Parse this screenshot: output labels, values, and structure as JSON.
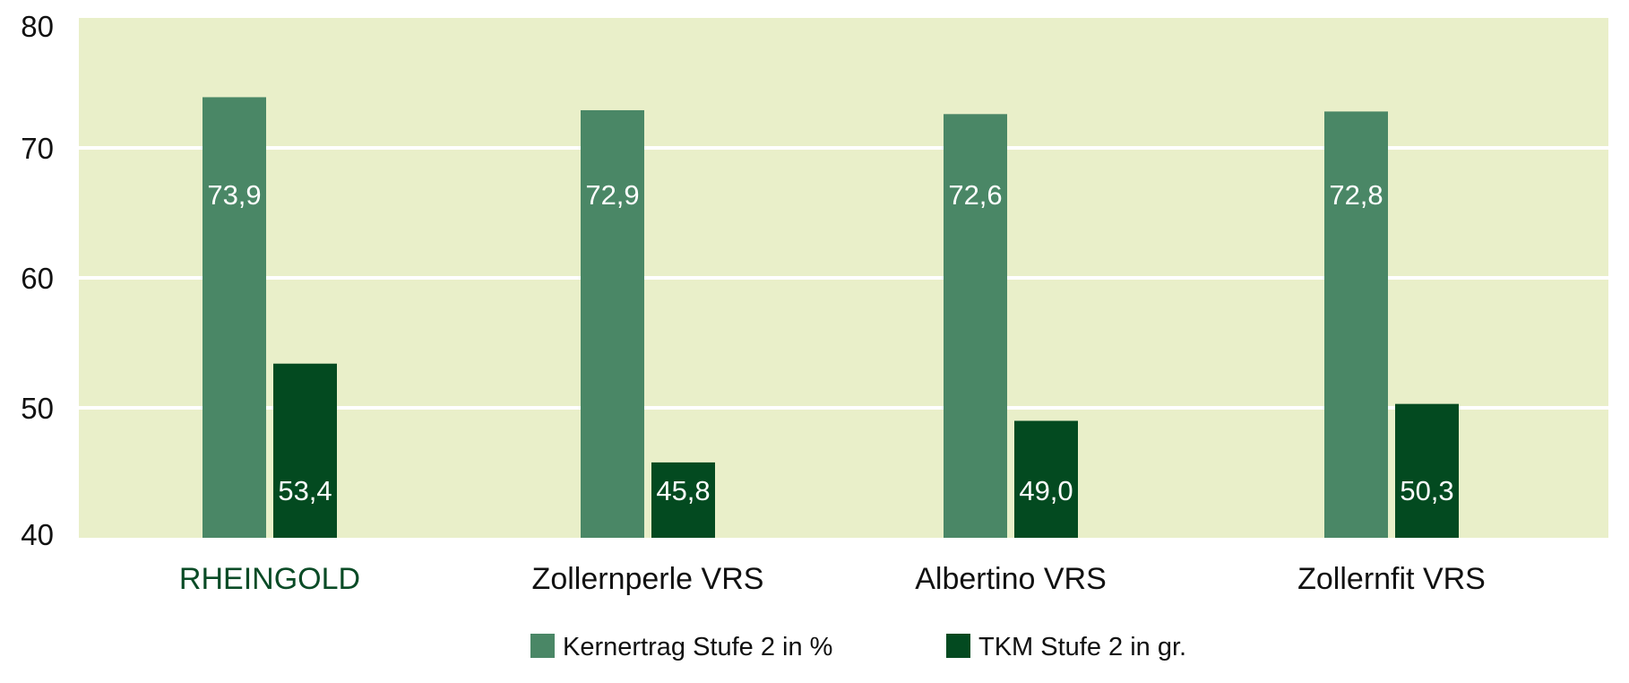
{
  "chart_data": {
    "type": "bar",
    "categories": [
      "RHEINGOLD",
      "Zollernperle VRS",
      "Albertino VRS",
      "Zollernfit VRS"
    ],
    "category_colors": [
      "#0a4b26",
      "#111111",
      "#111111",
      "#111111"
    ],
    "series": [
      {
        "name": "Kernertrag Stufe 2 in %",
        "values": [
          73.9,
          72.9,
          72.6,
          72.8
        ],
        "labels": [
          "73,9",
          "72,9",
          "72,6",
          "72,8"
        ],
        "color": "#4a8766"
      },
      {
        "name": "TKM Stufe 2 in gr.",
        "values": [
          53.4,
          45.8,
          49.0,
          50.3
        ],
        "labels": [
          "53,4",
          "45,8",
          "49,0",
          "50,3"
        ],
        "color": "#034a20"
      }
    ],
    "ylim": [
      40,
      80
    ],
    "yticks": [
      40,
      50,
      60,
      70,
      80
    ],
    "grid": true,
    "legend": "bottom",
    "plot_background": "#e9efc9",
    "gridline_color": "#ffffff"
  }
}
